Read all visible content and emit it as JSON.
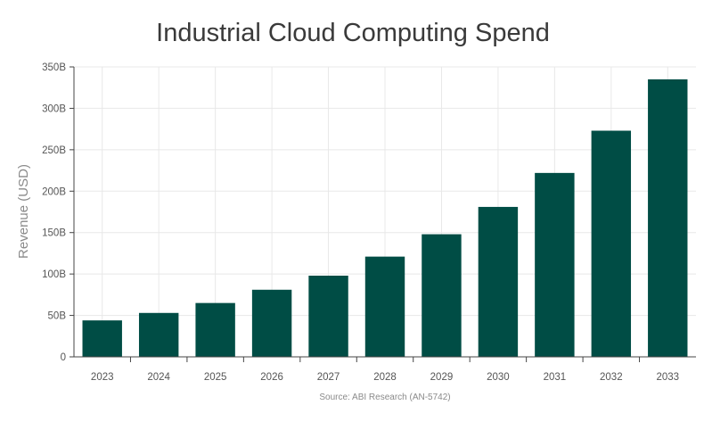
{
  "chart_data": {
    "type": "bar",
    "title": "Industrial Cloud Computing Spend",
    "ylabel": "Revenue (USD)",
    "xlabel": "",
    "categories": [
      "2023",
      "2024",
      "2025",
      "2026",
      "2027",
      "2028",
      "2029",
      "2030",
      "2031",
      "2032",
      "2033"
    ],
    "values": [
      44,
      53,
      65,
      81,
      98,
      121,
      148,
      181,
      222,
      273,
      335
    ],
    "value_unit": "B",
    "ylim": [
      0,
      350
    ],
    "yticks": [
      0,
      50,
      100,
      150,
      200,
      250,
      300,
      350
    ],
    "ytick_labels": [
      "0",
      "50B",
      "100B",
      "150B",
      "200B",
      "250B",
      "300B",
      "350B"
    ],
    "grid": true,
    "bar_color": "#004d45",
    "source": "Source: ABI Research (AN-5742)"
  }
}
